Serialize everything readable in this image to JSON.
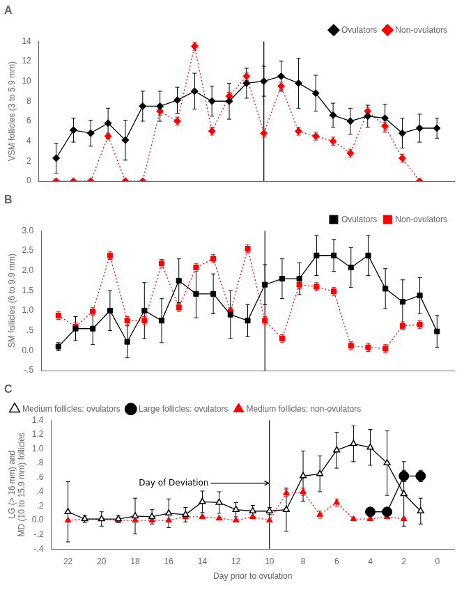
{
  "chart_data": [
    {
      "type": "line",
      "title": "A",
      "ylabel": "VSM follicles (3 to 5.9 mm)",
      "x": [
        22,
        21,
        20,
        19,
        18,
        17,
        16,
        15,
        14,
        13,
        12,
        11,
        10,
        9,
        8,
        7,
        6,
        5,
        4,
        3,
        2,
        1,
        0
      ],
      "xlim": [
        23,
        -1
      ],
      "xticks": [
        22,
        20,
        18,
        16,
        14,
        12,
        10,
        8,
        6,
        4,
        2,
        0
      ],
      "ylim": [
        0,
        14
      ],
      "yticks": [
        0,
        2,
        4,
        6,
        8,
        10,
        12,
        14
      ],
      "grid": false,
      "legend": "upper right",
      "tick_labels": "y",
      "vline": 10,
      "series": [
        {
          "name": "Ovulators",
          "color": "black",
          "marker": "diamond",
          "line_style": "solid",
          "values": [
            2.3,
            5.1,
            4.8,
            5.8,
            4.1,
            7.5,
            7.5,
            8.1,
            9.0,
            8.0,
            8.0,
            9.8,
            10.0,
            10.5,
            9.8,
            8.8,
            6.6,
            6.0,
            6.5,
            6.3,
            4.8,
            5.3,
            5.3
          ],
          "errors": [
            1.5,
            1.2,
            1.3,
            1.5,
            2.0,
            1.5,
            1.5,
            1.3,
            1.8,
            1.5,
            1.8,
            1.5,
            1.5,
            1.5,
            2.5,
            1.8,
            1.2,
            1.3,
            1.1,
            1.4,
            1.5,
            1.4,
            1.0
          ]
        },
        {
          "name": "Non-ovulators",
          "color": "red",
          "marker": "diamond",
          "line_style": "dotted",
          "values": [
            0.0,
            0.0,
            0.0,
            4.5,
            0.0,
            0.0,
            7.0,
            6.0,
            13.5,
            5.0,
            8.5,
            10.5,
            4.8,
            9.5,
            5.0,
            4.5,
            4.0,
            2.8,
            7.0,
            5.5,
            2.3,
            0.0,
            null
          ],
          "errors": [
            0.0,
            0.0,
            0.0,
            0.3,
            0.0,
            0.0,
            0.4,
            0.4,
            0.4,
            0.4,
            0.4,
            0.4,
            0.4,
            0.4,
            0.4,
            0.4,
            0.4,
            0.4,
            0.4,
            0.4,
            0.4,
            0.0,
            null
          ]
        }
      ]
    },
    {
      "type": "line",
      "title": "B",
      "ylabel": "SM follicles (6 to 9.9 mm)",
      "x": [
        22,
        21,
        20,
        19,
        18,
        17,
        16,
        15,
        14,
        13,
        12,
        11,
        10,
        9,
        8,
        7,
        6,
        5,
        4,
        3,
        2,
        1,
        0
      ],
      "xlim": [
        23,
        -1
      ],
      "xticks": [
        22,
        20,
        18,
        16,
        14,
        12,
        10,
        8,
        6,
        4,
        2,
        0
      ],
      "ylim": [
        -0.5,
        3.0
      ],
      "yticks": [
        {
          "value": -0.5,
          "label": "-.5"
        },
        {
          "value": 0.0,
          "label": "0.0"
        },
        {
          "value": 0.5,
          "label": ".5"
        },
        {
          "value": 1.0,
          "label": "1.0"
        },
        1.5,
        {
          "value": 2.0,
          "label": "2.0"
        },
        2.5,
        {
          "value": 3.0,
          "label": "3.0"
        }
      ],
      "grid": false,
      "legend": "upper right",
      "tick_labels": "y",
      "vline": 10,
      "series": [
        {
          "name": "Ovulators",
          "color": "black",
          "marker": "square",
          "line_style": "solid",
          "values": [
            0.1,
            0.55,
            0.55,
            1.0,
            0.22,
            1.0,
            0.75,
            1.75,
            1.42,
            1.42,
            0.9,
            0.75,
            1.65,
            1.8,
            1.8,
            2.38,
            2.38,
            2.08,
            2.38,
            1.55,
            1.22,
            1.38,
            0.48
          ],
          "errors": [
            0.1,
            0.3,
            0.4,
            0.5,
            0.4,
            0.7,
            0.55,
            0.55,
            0.6,
            0.5,
            0.6,
            0.4,
            0.5,
            0.5,
            0.4,
            0.5,
            0.4,
            0.5,
            0.5,
            0.5,
            0.55,
            0.45,
            0.4
          ]
        },
        {
          "name": "Non-ovulators",
          "color": "red",
          "marker": "square",
          "line_style": "dotted",
          "values": [
            0.88,
            0.6,
            0.98,
            2.38,
            0.75,
            0.75,
            2.18,
            1.08,
            2.08,
            2.3,
            0.98,
            2.55,
            0.75,
            0.3,
            1.65,
            1.6,
            1.48,
            0.12,
            0.08,
            0.05,
            0.62,
            0.65,
            null
          ],
          "errors": [
            0.1,
            0.1,
            0.1,
            0.1,
            0.1,
            0.1,
            0.1,
            0.1,
            0.1,
            0.1,
            0.1,
            0.1,
            0.1,
            0.1,
            0.1,
            0.1,
            0.1,
            0.1,
            0.1,
            0.1,
            0.1,
            0.1,
            null
          ]
        }
      ]
    },
    {
      "type": "line",
      "title": "C",
      "ylabel": "LG (> 16 mm) and\nMD (10 to 15.9 mm) follicles",
      "xlabel": "Day prior to ovulation",
      "x": [
        22,
        21,
        20,
        19,
        18,
        17,
        16,
        15,
        14,
        13,
        12,
        11,
        10,
        9,
        8,
        7,
        6,
        5,
        4,
        3,
        2,
        1,
        0
      ],
      "xlim": [
        23,
        -1
      ],
      "xticks": [
        22,
        20,
        18,
        16,
        14,
        12,
        10,
        8,
        6,
        4,
        2,
        0
      ],
      "ylim": [
        -0.4,
        1.4
      ],
      "yticks": [
        {
          "value": -0.4,
          "label": "-.4"
        },
        {
          "value": -0.2,
          "label": "-.2"
        },
        {
          "value": 0.0,
          "label": "0.0"
        },
        {
          "value": 0.2,
          "label": ".2"
        },
        {
          "value": 0.4,
          "label": ".4"
        },
        {
          "value": 0.6,
          "label": ".6"
        },
        {
          "value": 0.8,
          "label": ".8"
        },
        {
          "value": 1.0,
          "label": "1.0"
        },
        1.2,
        1.4
      ],
      "grid": false,
      "legend": "upper left",
      "vline": 10,
      "annotations": [
        {
          "text": "Day of Deviation",
          "x": 13.5,
          "y": 0.52,
          "arrow_x": 10,
          "arrow_y": 0.52
        }
      ],
      "series": [
        {
          "name": "Medium follicles: ovulators",
          "color": "black",
          "marker": "open_triangle",
          "line_style": "solid",
          "values": [
            0.12,
            0.02,
            0.02,
            0.02,
            0.06,
            0.05,
            0.1,
            0.08,
            0.26,
            0.25,
            0.15,
            0.13,
            0.13,
            0.15,
            0.62,
            0.65,
            0.98,
            1.07,
            1.02,
            0.8,
            0.37,
            0.13,
            null
          ],
          "errors": [
            0.42,
            0.05,
            0.1,
            0.05,
            0.25,
            0.1,
            0.2,
            0.1,
            0.15,
            0.15,
            0.1,
            0.08,
            0.05,
            0.3,
            0.35,
            0.25,
            0.25,
            0.25,
            0.25,
            0.45,
            0.45,
            0.18,
            null
          ]
        },
        {
          "name": "Large follicles: ovulators",
          "color": "black",
          "marker": "circle",
          "line_style": "solid",
          "values": [
            null,
            null,
            null,
            null,
            null,
            null,
            null,
            null,
            null,
            null,
            null,
            null,
            null,
            null,
            null,
            null,
            null,
            null,
            0.12,
            0.12,
            0.62,
            0.62,
            null
          ],
          "errors": [
            null,
            null,
            null,
            null,
            null,
            null,
            null,
            null,
            null,
            null,
            null,
            null,
            null,
            null,
            null,
            null,
            null,
            null,
            0.05,
            0.05,
            0.08,
            0.08,
            null
          ]
        },
        {
          "name": "Medium follicles: non-ovulators",
          "color": "red",
          "marker": "triangle",
          "line_style": "dotted",
          "values": [
            0.0,
            0.02,
            0.02,
            0.0,
            0.0,
            0.0,
            0.0,
            0.05,
            0.05,
            0.03,
            0.0,
            0.05,
            0.0,
            0.38,
            0.4,
            0.08,
            0.25,
            0.02,
            0.02,
            0.05,
            0.02,
            null,
            null
          ],
          "errors": [
            0.0,
            0.0,
            0.0,
            0.0,
            0.0,
            0.0,
            0.0,
            0.0,
            0.0,
            0.0,
            0.0,
            0.0,
            0.0,
            0.05,
            0.05,
            0.05,
            0.05,
            0.02,
            0.02,
            0.02,
            0.02,
            null,
            null
          ]
        }
      ]
    }
  ]
}
